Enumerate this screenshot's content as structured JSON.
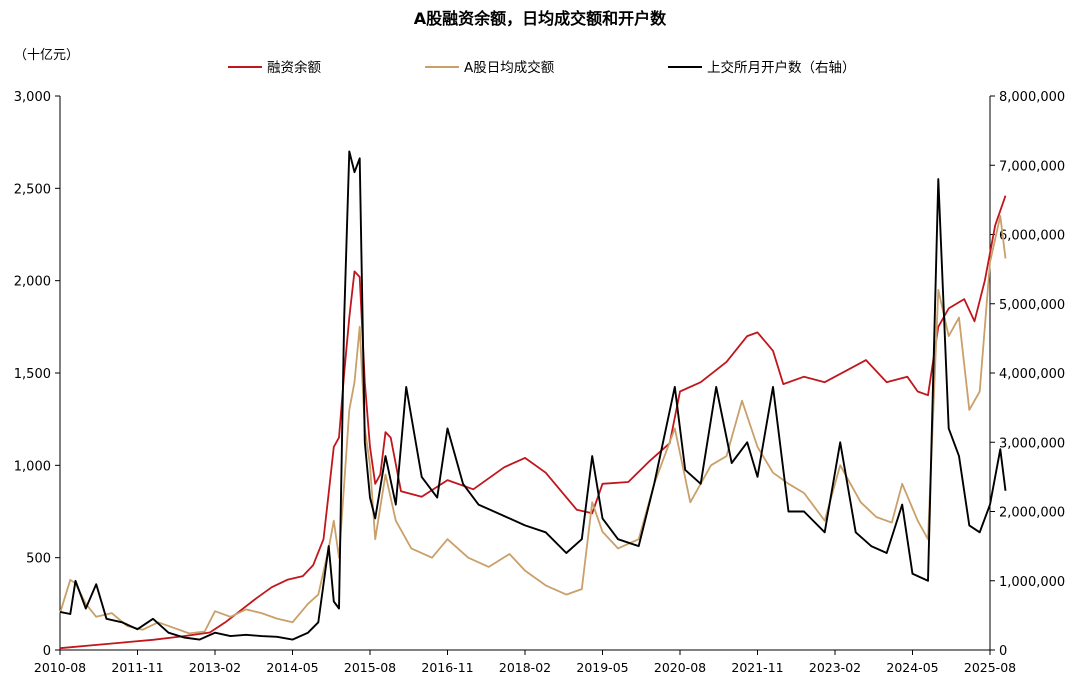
{
  "chart_data": {
    "type": "line",
    "title": "A股融资余额，日均成交额和开户数",
    "left_unit": "（十亿元）",
    "x_ticks": [
      "2010-08",
      "2011-11",
      "2013-02",
      "2014-05",
      "2015-08",
      "2016-11",
      "2018-02",
      "2019-05",
      "2020-08",
      "2021-11",
      "2023-02",
      "2024-05",
      "2025-08"
    ],
    "y_left_ticks": [
      "0",
      "500",
      "1,000",
      "1,500",
      "2,000",
      "2,500",
      "3,000"
    ],
    "y_right_ticks": [
      "0",
      "1,000,000",
      "2,000,000",
      "3,000,000",
      "4,000,000",
      "5,000,000",
      "6,000,000",
      "7,000,000",
      "8,000,000"
    ],
    "ylim_left": [
      0,
      3000
    ],
    "ylim_right": [
      0,
      8000000
    ],
    "legend_position": "top",
    "series": [
      {
        "name": "融资余额",
        "axis": "left",
        "color": "#c0161c",
        "points": [
          [
            "2010-08",
            10
          ],
          [
            "2011-02",
            25
          ],
          [
            "2011-08",
            40
          ],
          [
            "2012-02",
            55
          ],
          [
            "2012-08",
            75
          ],
          [
            "2013-01",
            95
          ],
          [
            "2013-04",
            150
          ],
          [
            "2013-07",
            215
          ],
          [
            "2013-10",
            280
          ],
          [
            "2014-01",
            340
          ],
          [
            "2014-04",
            380
          ],
          [
            "2014-07",
            400
          ],
          [
            "2014-09",
            460
          ],
          [
            "2014-11",
            600
          ],
          [
            "2014-12",
            850
          ],
          [
            "2015-01",
            1100
          ],
          [
            "2015-02",
            1150
          ],
          [
            "2015-03",
            1500
          ],
          [
            "2015-04",
            1800
          ],
          [
            "2015-05",
            2050
          ],
          [
            "2015-06",
            2020
          ],
          [
            "2015-07",
            1450
          ],
          [
            "2015-08",
            1100
          ],
          [
            "2015-09",
            900
          ],
          [
            "2015-10",
            950
          ],
          [
            "2015-11",
            1180
          ],
          [
            "2015-12",
            1150
          ],
          [
            "2016-02",
            860
          ],
          [
            "2016-06",
            830
          ],
          [
            "2016-11",
            920
          ],
          [
            "2017-04",
            870
          ],
          [
            "2017-10",
            990
          ],
          [
            "2018-02",
            1040
          ],
          [
            "2018-06",
            960
          ],
          [
            "2018-12",
            760
          ],
          [
            "2019-03",
            740
          ],
          [
            "2019-05",
            900
          ],
          [
            "2019-10",
            910
          ],
          [
            "2020-02",
            1020
          ],
          [
            "2020-06",
            1120
          ],
          [
            "2020-08",
            1400
          ],
          [
            "2020-12",
            1450
          ],
          [
            "2021-05",
            1560
          ],
          [
            "2021-09",
            1700
          ],
          [
            "2021-11",
            1720
          ],
          [
            "2022-02",
            1620
          ],
          [
            "2022-04",
            1440
          ],
          [
            "2022-08",
            1480
          ],
          [
            "2022-12",
            1450
          ],
          [
            "2023-04",
            1510
          ],
          [
            "2023-08",
            1570
          ],
          [
            "2023-12",
            1450
          ],
          [
            "2024-04",
            1480
          ],
          [
            "2024-06",
            1400
          ],
          [
            "2024-08",
            1380
          ],
          [
            "2024-10",
            1750
          ],
          [
            "2024-12",
            1850
          ],
          [
            "2025-03",
            1900
          ],
          [
            "2025-05",
            1780
          ],
          [
            "2025-07",
            2000
          ],
          [
            "2025-09",
            2300
          ],
          [
            "2025-11",
            2460
          ]
        ]
      },
      {
        "name": "A股日均成交额",
        "axis": "left",
        "color": "#c9a06a",
        "points": [
          [
            "2010-08",
            200
          ],
          [
            "2010-10",
            380
          ],
          [
            "2010-11",
            360
          ],
          [
            "2011-01",
            250
          ],
          [
            "2011-03",
            180
          ],
          [
            "2011-06",
            200
          ],
          [
            "2011-09",
            130
          ],
          [
            "2011-12",
            110
          ],
          [
            "2012-03",
            150
          ],
          [
            "2012-06",
            120
          ],
          [
            "2012-09",
            90
          ],
          [
            "2012-12",
            100
          ],
          [
            "2013-02",
            210
          ],
          [
            "2013-05",
            180
          ],
          [
            "2013-08",
            220
          ],
          [
            "2013-11",
            200
          ],
          [
            "2014-02",
            170
          ],
          [
            "2014-05",
            150
          ],
          [
            "2014-08",
            250
          ],
          [
            "2014-10",
            300
          ],
          [
            "2014-12",
            550
          ],
          [
            "2015-01",
            700
          ],
          [
            "2015-02",
            500
          ],
          [
            "2015-03",
            900
          ],
          [
            "2015-04",
            1300
          ],
          [
            "2015-05",
            1450
          ],
          [
            "2015-06",
            1750
          ],
          [
            "2015-07",
            1200
          ],
          [
            "2015-08",
            1000
          ],
          [
            "2015-09",
            600
          ],
          [
            "2015-11",
            950
          ],
          [
            "2016-01",
            700
          ],
          [
            "2016-04",
            550
          ],
          [
            "2016-08",
            500
          ],
          [
            "2016-11",
            600
          ],
          [
            "2017-03",
            500
          ],
          [
            "2017-07",
            450
          ],
          [
            "2017-11",
            520
          ],
          [
            "2018-02",
            430
          ],
          [
            "2018-06",
            350
          ],
          [
            "2018-10",
            300
          ],
          [
            "2019-01",
            330
          ],
          [
            "2019-03",
            800
          ],
          [
            "2019-05",
            640
          ],
          [
            "2019-08",
            550
          ],
          [
            "2019-12",
            600
          ],
          [
            "2020-03",
            900
          ],
          [
            "2020-07",
            1200
          ],
          [
            "2020-10",
            800
          ],
          [
            "2021-02",
            1000
          ],
          [
            "2021-05",
            1050
          ],
          [
            "2021-08",
            1350
          ],
          [
            "2021-11",
            1100
          ],
          [
            "2022-02",
            960
          ],
          [
            "2022-05",
            900
          ],
          [
            "2022-08",
            850
          ],
          [
            "2022-12",
            700
          ],
          [
            "2023-03",
            1000
          ],
          [
            "2023-07",
            800
          ],
          [
            "2023-10",
            720
          ],
          [
            "2024-01",
            690
          ],
          [
            "2024-03",
            900
          ],
          [
            "2024-06",
            700
          ],
          [
            "2024-08",
            600
          ],
          [
            "2024-10",
            1950
          ],
          [
            "2024-12",
            1700
          ],
          [
            "2025-02",
            1800
          ],
          [
            "2025-04",
            1300
          ],
          [
            "2025-06",
            1400
          ],
          [
            "2025-08",
            2100
          ],
          [
            "2025-10",
            2350
          ],
          [
            "2025-11",
            2120
          ]
        ]
      },
      {
        "name": "上交所月开户数（右轴）",
        "axis": "right",
        "color": "#000000",
        "points": [
          [
            "2010-08",
            550000
          ],
          [
            "2010-10",
            520000
          ],
          [
            "2010-11",
            1000000
          ],
          [
            "2011-01",
            600000
          ],
          [
            "2011-03",
            950000
          ],
          [
            "2011-05",
            450000
          ],
          [
            "2011-08",
            400000
          ],
          [
            "2011-11",
            300000
          ],
          [
            "2012-02",
            450000
          ],
          [
            "2012-05",
            250000
          ],
          [
            "2012-08",
            180000
          ],
          [
            "2012-11",
            150000
          ],
          [
            "2013-02",
            250000
          ],
          [
            "2013-05",
            200000
          ],
          [
            "2013-08",
            220000
          ],
          [
            "2013-11",
            200000
          ],
          [
            "2014-02",
            190000
          ],
          [
            "2014-05",
            150000
          ],
          [
            "2014-08",
            250000
          ],
          [
            "2014-10",
            400000
          ],
          [
            "2014-12",
            1500000
          ],
          [
            "2015-01",
            700000
          ],
          [
            "2015-02",
            600000
          ],
          [
            "2015-03",
            4800000
          ],
          [
            "2015-04",
            7200000
          ],
          [
            "2015-05",
            6900000
          ],
          [
            "2015-06",
            7100000
          ],
          [
            "2015-07",
            3000000
          ],
          [
            "2015-08",
            2200000
          ],
          [
            "2015-09",
            1900000
          ],
          [
            "2015-11",
            2800000
          ],
          [
            "2016-01",
            2100000
          ],
          [
            "2016-03",
            3800000
          ],
          [
            "2016-06",
            2500000
          ],
          [
            "2016-09",
            2200000
          ],
          [
            "2016-11",
            3200000
          ],
          [
            "2017-02",
            2400000
          ],
          [
            "2017-05",
            2100000
          ],
          [
            "2017-08",
            2000000
          ],
          [
            "2017-11",
            1900000
          ],
          [
            "2018-02",
            1800000
          ],
          [
            "2018-06",
            1700000
          ],
          [
            "2018-10",
            1400000
          ],
          [
            "2019-01",
            1600000
          ],
          [
            "2019-03",
            2800000
          ],
          [
            "2019-05",
            1900000
          ],
          [
            "2019-08",
            1600000
          ],
          [
            "2019-12",
            1500000
          ],
          [
            "2020-03",
            2400000
          ],
          [
            "2020-07",
            3800000
          ],
          [
            "2020-09",
            2600000
          ],
          [
            "2020-12",
            2400000
          ],
          [
            "2021-03",
            3800000
          ],
          [
            "2021-06",
            2700000
          ],
          [
            "2021-09",
            3000000
          ],
          [
            "2021-11",
            2500000
          ],
          [
            "2022-02",
            3800000
          ],
          [
            "2022-05",
            2000000
          ],
          [
            "2022-08",
            2000000
          ],
          [
            "2022-12",
            1700000
          ],
          [
            "2023-03",
            3000000
          ],
          [
            "2023-06",
            1700000
          ],
          [
            "2023-09",
            1500000
          ],
          [
            "2023-12",
            1400000
          ],
          [
            "2024-03",
            2100000
          ],
          [
            "2024-05",
            1100000
          ],
          [
            "2024-08",
            1000000
          ],
          [
            "2024-10",
            6800000
          ],
          [
            "2024-12",
            3200000
          ],
          [
            "2025-02",
            2800000
          ],
          [
            "2025-04",
            1800000
          ],
          [
            "2025-06",
            1700000
          ],
          [
            "2025-08",
            2100000
          ],
          [
            "2025-10",
            2900000
          ],
          [
            "2025-11",
            2300000
          ]
        ]
      }
    ]
  }
}
